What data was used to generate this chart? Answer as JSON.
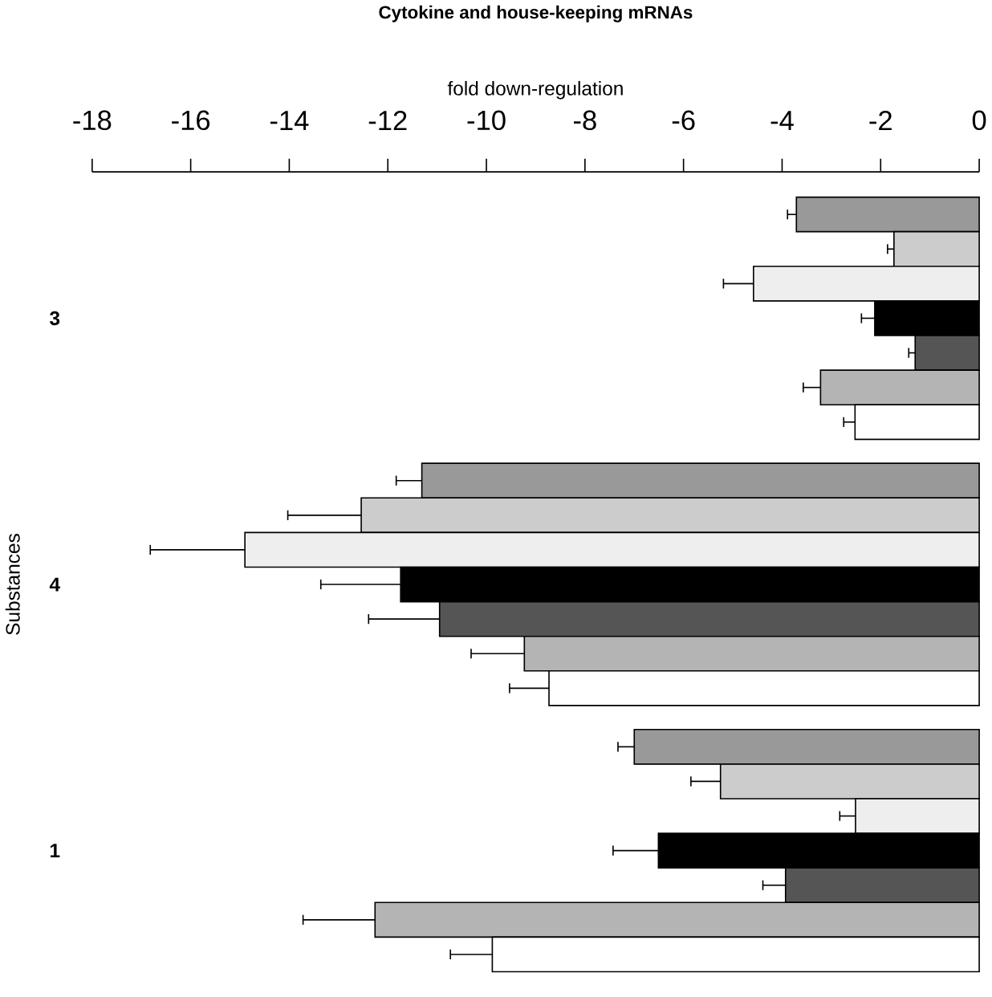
{
  "chart_data": {
    "type": "bar",
    "orientation": "horizontal",
    "title": "Cytokine and house-keeping mRNAs",
    "xlabel": "fold down-regulation",
    "ylabel": "Substances",
    "categories": [
      "3",
      "4",
      "1"
    ],
    "xlim": [
      -18,
      0
    ],
    "xticks": [
      -18,
      -16,
      -14,
      -12,
      -10,
      -8,
      -6,
      -4,
      -2,
      0
    ],
    "series": [
      {
        "color": "#999999",
        "values": [
          -3.71,
          -11.31,
          -7.0
        ],
        "errors": [
          [
            -3.89,
            -3.71
          ],
          [
            -11.83,
            -11.31
          ],
          [
            -7.33,
            -7.0
          ]
        ]
      },
      {
        "color": "#cccccc",
        "values": [
          -1.73,
          -12.54,
          -5.25
        ],
        "errors": [
          [
            -1.86,
            -1.73
          ],
          [
            -14.03,
            -12.54
          ],
          [
            -5.85,
            -5.25
          ]
        ]
      },
      {
        "color": "#eeeeee",
        "values": [
          -4.58,
          -14.9,
          -2.51
        ],
        "errors": [
          [
            -5.19,
            -4.58
          ],
          [
            -16.82,
            -14.9
          ],
          [
            -2.83,
            -2.51
          ]
        ]
      },
      {
        "color": "#000000",
        "values": [
          -2.12,
          -11.74,
          -6.51
        ],
        "errors": [
          [
            -2.39,
            -2.12
          ],
          [
            -13.36,
            -11.74
          ],
          [
            -7.43,
            -6.51
          ]
        ]
      },
      {
        "color": "#555555",
        "values": [
          -1.3,
          -10.95,
          -3.93
        ],
        "errors": [
          [
            -1.43,
            -1.3
          ],
          [
            -12.39,
            -10.95
          ],
          [
            -4.39,
            -3.93
          ]
        ]
      },
      {
        "color": "#b4b4b4",
        "values": [
          -3.22,
          -9.23,
          -12.26
        ],
        "errors": [
          [
            -3.57,
            -3.22
          ],
          [
            -10.31,
            -9.23
          ],
          [
            -13.72,
            -12.26
          ]
        ]
      },
      {
        "color": "#ffffff",
        "values": [
          -2.52,
          -8.73,
          -9.88
        ],
        "errors": [
          [
            -2.75,
            -2.52
          ],
          [
            -9.53,
            -8.73
          ],
          [
            -10.73,
            -9.88
          ]
        ]
      }
    ]
  }
}
